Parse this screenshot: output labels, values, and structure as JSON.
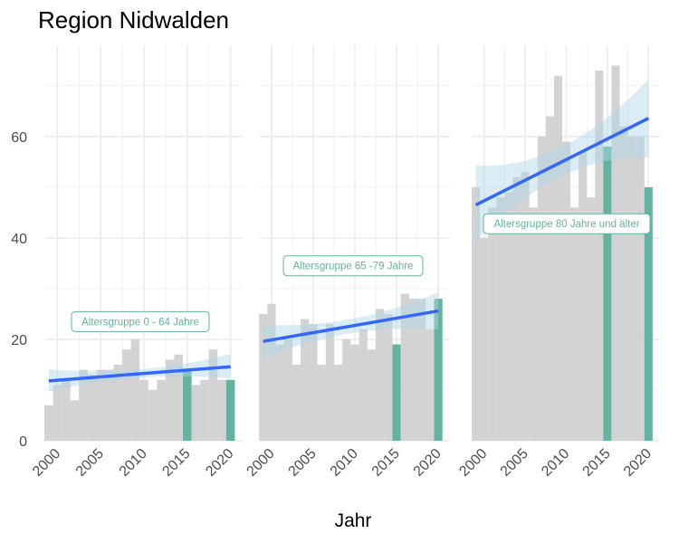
{
  "colors": {
    "bar_default": "#d3d3d3",
    "bar_highlight": "#66b2a0",
    "trend_line": "#3366ff",
    "confidence_band": "#add8e6",
    "annotation": "#66b2a0",
    "grid": "#ebebeb"
  },
  "chart_data": {
    "type": "bar",
    "title": "Region Nidwalden",
    "xlabel": "Jahr",
    "ylabel": "",
    "ylim": [
      0,
      78
    ],
    "xlim": [
      1998.6,
      2021.4
    ],
    "x_ticks": [
      2000,
      2005,
      2010,
      2015,
      2020
    ],
    "y_ticks": [
      0,
      20,
      40,
      60
    ],
    "highlight_years": [
      2015,
      2020
    ],
    "grid": true,
    "panels": [
      {
        "name": "Altersgruppe 0 - 64 Jahre",
        "years": [
          1999,
          2000,
          2001,
          2002,
          2003,
          2004,
          2005,
          2006,
          2007,
          2008,
          2009,
          2010,
          2011,
          2012,
          2013,
          2014,
          2015,
          2016,
          2017,
          2018,
          2019,
          2020
        ],
        "values": [
          7,
          11,
          12,
          8,
          14,
          13,
          14,
          14,
          15,
          18,
          20,
          12,
          10,
          12,
          16,
          17,
          14,
          11,
          12,
          18,
          12,
          12
        ],
        "trend": {
          "start": [
            1999,
            11.8
          ],
          "end": [
            2020,
            14.6
          ]
        },
        "band": {
          "lower": [
            [
              1999,
              9.7
            ],
            [
              2009.5,
              12.4
            ],
            [
              2020,
              12.3
            ]
          ],
          "upper": [
            [
              1999,
              14.1
            ],
            [
              2009.5,
              14.1
            ],
            [
              2020,
              17.1
            ]
          ]
        }
      },
      {
        "name": "Altersgruppe 65 -79 Jahre",
        "years": [
          1999,
          2000,
          2001,
          2002,
          2003,
          2004,
          2005,
          2006,
          2007,
          2008,
          2009,
          2010,
          2011,
          2012,
          2013,
          2014,
          2015,
          2016,
          2017,
          2018,
          2019,
          2020
        ],
        "values": [
          25,
          27,
          19,
          20,
          15,
          24,
          23,
          15,
          23,
          15,
          20,
          19,
          22,
          18,
          26,
          25,
          19,
          29,
          28,
          28,
          22,
          28
        ],
        "trend": {
          "start": [
            1999,
            19.6
          ],
          "end": [
            2020,
            25.6
          ]
        },
        "band": {
          "lower": [
            [
              1999,
              16.3
            ],
            [
              2009.5,
              21.2
            ],
            [
              2020,
              21.9
            ]
          ],
          "upper": [
            [
              1999,
              22.9
            ],
            [
              2009.5,
              24.0
            ],
            [
              2020,
              29.3
            ]
          ]
        }
      },
      {
        "name": "Altersgruppe 80 Jahre und älter",
        "years": [
          1999,
          2000,
          2001,
          2002,
          2003,
          2004,
          2005,
          2006,
          2007,
          2008,
          2009,
          2010,
          2011,
          2012,
          2013,
          2014,
          2015,
          2016,
          2017,
          2018,
          2019,
          2020
        ],
        "values": [
          50,
          40,
          46,
          48,
          49,
          52,
          53,
          46,
          60,
          64,
          72,
          59,
          46,
          57,
          48,
          73,
          58,
          74,
          62,
          60,
          60,
          50
        ],
        "trend": {
          "start": [
            1999,
            46.5
          ],
          "end": [
            2020,
            63.6
          ]
        },
        "band": {
          "lower": [
            [
              1999,
              39.5
            ],
            [
              2009.5,
              52.2
            ],
            [
              2020,
              55.8
            ]
          ],
          "upper": [
            [
              1999,
              54.3
            ],
            [
              2009.5,
              58.0
            ],
            [
              2020,
              71.3
            ]
          ]
        }
      }
    ]
  }
}
